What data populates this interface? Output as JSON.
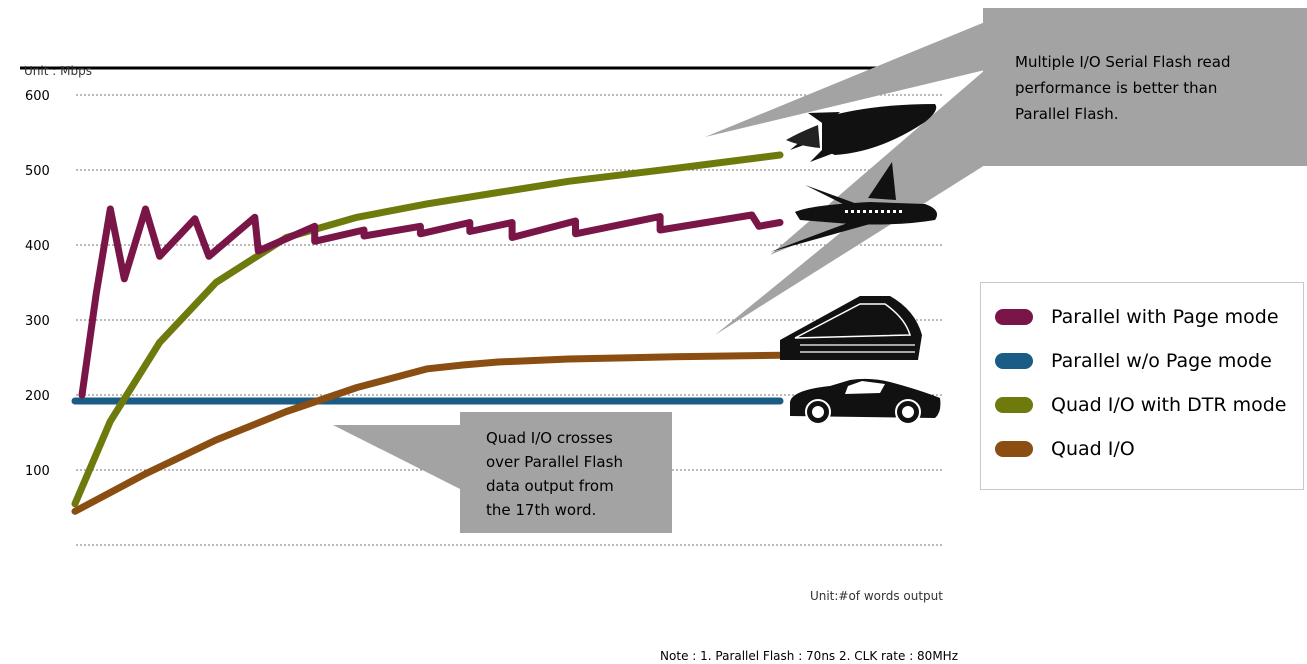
{
  "chart_data": {
    "type": "line",
    "y_unit_label": "Unit : Mbps",
    "x_unit_label": "Unit:#of words output",
    "note": "Note : 1. Parallel Flash : 70ns   2. CLK rate : 80MHz",
    "ylim": [
      0,
      620
    ],
    "y_ticks": [
      "100",
      "200",
      "300",
      "400",
      "500",
      "600"
    ],
    "grid": true,
    "legend_position": "right",
    "series": [
      {
        "name": "Parallel with Page mode",
        "color": "#7a1548",
        "x": [
          0.01,
          0.03,
          0.05,
          0.07,
          0.1,
          0.12,
          0.17,
          0.19,
          0.255,
          0.26,
          0.34,
          0.34,
          0.41,
          0.41,
          0.49,
          0.49,
          0.56,
          0.56,
          0.62,
          0.62,
          0.71,
          0.71,
          0.83,
          0.83,
          0.96,
          0.97,
          1.0
        ],
        "values": [
          200,
          335,
          448,
          355,
          448,
          385,
          435,
          385,
          437,
          392,
          425,
          405,
          420,
          412,
          425,
          415,
          430,
          418,
          430,
          410,
          432,
          415,
          438,
          420,
          440,
          425,
          430
        ]
      },
      {
        "name": "Parallel w/o Page mode",
        "color": "#1a5c85",
        "x": [
          0,
          1
        ],
        "values": [
          192,
          192
        ]
      },
      {
        "name": "Quad I/O with DTR mode",
        "color": "#6e7a0c",
        "x": [
          0,
          0.05,
          0.12,
          0.2,
          0.3,
          0.4,
          0.5,
          0.6,
          0.7,
          0.85,
          1.0
        ],
        "values": [
          55,
          165,
          270,
          350,
          410,
          437,
          455,
          470,
          485,
          502,
          520
        ]
      },
      {
        "name": "Quad I/O",
        "color": "#8a4e12",
        "x": [
          0,
          0.1,
          0.2,
          0.3,
          0.4,
          0.5,
          0.55,
          0.6,
          0.7,
          0.85,
          1.0
        ],
        "values": [
          45,
          95,
          140,
          178,
          210,
          235,
          240,
          244,
          248,
          251,
          253
        ]
      }
    ],
    "annotations": [
      "Multiple I/O Serial Flash read performance is better than Parallel Flash.",
      "Quad I/O crosses over Parallel Flash data output from the 17th word."
    ]
  },
  "callout_top": {
    "lines": [
      "Multiple I/O Serial Flash read",
      "performance is better than",
      "Parallel Flash."
    ]
  },
  "callout_bottom": {
    "lines": [
      "Quad I/O crosses",
      "over Parallel Flash",
      "data output from",
      "the 17th word."
    ]
  },
  "legend": {
    "items": [
      {
        "label": "Parallel with Page mode",
        "color": "#7a1548"
      },
      {
        "label": "Parallel w/o Page mode",
        "color": "#1a5c85"
      },
      {
        "label": "Quad I/O with DTR mode",
        "color": "#6e7a0c"
      },
      {
        "label": "Quad I/O",
        "color": "#8a4e12"
      }
    ]
  },
  "icons": [
    "rocket-icon",
    "airplane-icon",
    "train-icon",
    "car-icon"
  ]
}
